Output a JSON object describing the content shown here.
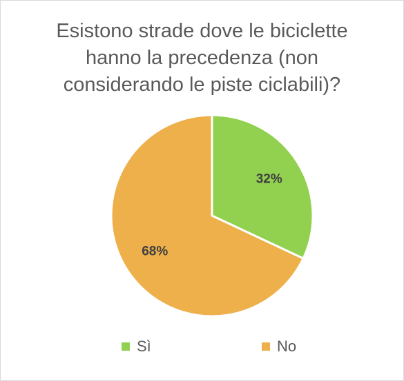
{
  "chart_data": {
    "type": "pie",
    "title": "Esistono strade dove le biciclette\nhanno la precedenza (non\nconsiderando le piste ciclabili)?",
    "categories": [
      "Sì",
      "No"
    ],
    "values": [
      32,
      68
    ],
    "labels": [
      "32%",
      "68%"
    ],
    "colors": [
      "#92d050",
      "#edb04a"
    ],
    "legend": "bottom"
  }
}
